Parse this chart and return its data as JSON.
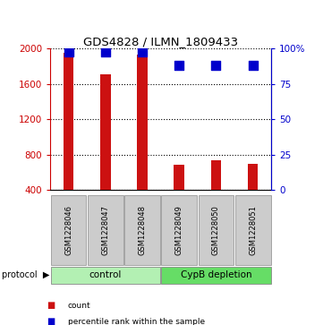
{
  "title": "GDS4828 / ILMN_1809433",
  "samples": [
    "GSM1228046",
    "GSM1228047",
    "GSM1228048",
    "GSM1228049",
    "GSM1228050",
    "GSM1228051"
  ],
  "counts": [
    1950,
    1715,
    1930,
    690,
    740,
    695
  ],
  "percentiles": [
    98,
    98,
    98,
    88,
    88,
    88
  ],
  "ylim_left": [
    400,
    2000
  ],
  "ylim_right": [
    0,
    100
  ],
  "yticks_left": [
    400,
    800,
    1200,
    1600,
    2000
  ],
  "yticks_right": [
    0,
    25,
    50,
    75,
    100
  ],
  "ytick_labels_right": [
    "0",
    "25",
    "50",
    "75",
    "100%"
  ],
  "groups": [
    {
      "label": "control",
      "indices": [
        0,
        1,
        2
      ],
      "color": "#b3f0b3"
    },
    {
      "label": "CypB depletion",
      "indices": [
        3,
        4,
        5
      ],
      "color": "#66dd66"
    }
  ],
  "bar_color": "#cc1111",
  "dot_color": "#0000cc",
  "bar_width": 0.28,
  "dot_size": 45,
  "sample_box_color": "#cccccc",
  "grid_color": "#aaaaaa",
  "left_tick_color": "#cc0000",
  "right_tick_color": "#0000cc",
  "legend_items": [
    {
      "color": "#cc1111",
      "label": "count"
    },
    {
      "color": "#0000cc",
      "label": "percentile rank within the sample"
    }
  ]
}
